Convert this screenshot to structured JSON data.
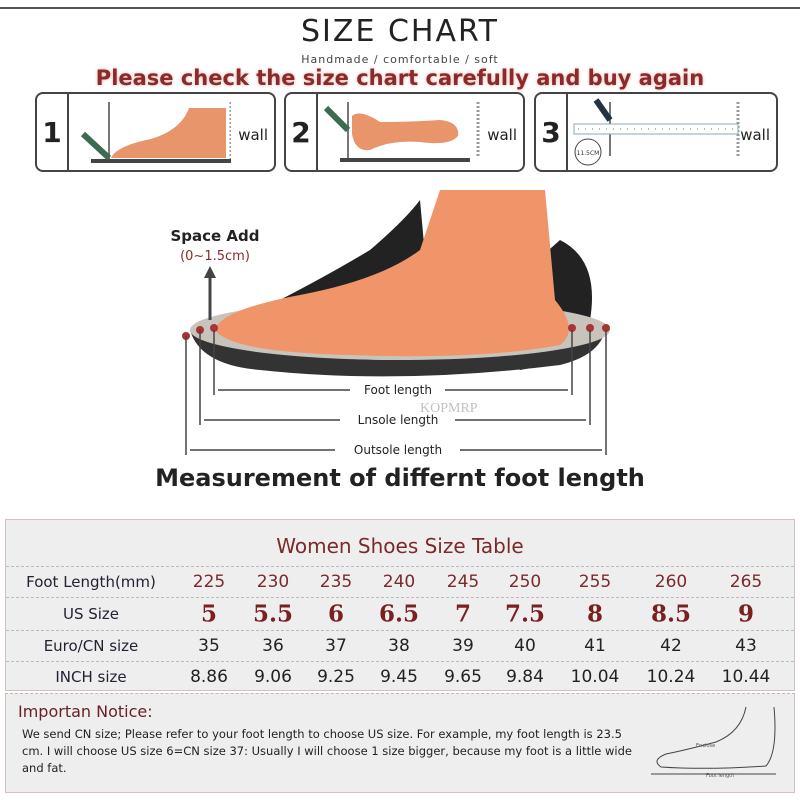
{
  "header": {
    "title": "SIZE CHART",
    "subtitle": "Handmade / comfortable / soft",
    "warning": "Please check the size chart carefully and buy again"
  },
  "steps": [
    {
      "num": "1",
      "wall": "wall"
    },
    {
      "num": "2",
      "wall": "wall"
    },
    {
      "num": "3",
      "wall": "wall",
      "ruler_label": "11.5CM"
    }
  ],
  "diagram": {
    "space_add": "Space Add",
    "space_range": "(0~1.5cm)",
    "foot_length": "Foot length",
    "insole_length": "Lnsole length",
    "outsole_length": "Outsole length",
    "watermark": "KOPMRP",
    "caption": "Measurement of differnt foot length"
  },
  "table": {
    "title": "Women Shoes Size Table",
    "rows": [
      {
        "label": "Foot Length(mm)",
        "values": [
          "225",
          "230",
          "235",
          "240",
          "245",
          "250",
          "255",
          "260",
          "265"
        ]
      },
      {
        "label": "US Size",
        "values": [
          "5",
          "5.5",
          "6",
          "6.5",
          "7",
          "7.5",
          "8",
          "8.5",
          "9"
        ]
      },
      {
        "label": "Euro/CN size",
        "values": [
          "35",
          "36",
          "37",
          "38",
          "39",
          "40",
          "41",
          "42",
          "43"
        ]
      },
      {
        "label": "INCH size",
        "values": [
          "8.86",
          "9.06",
          "9.25",
          "9.45",
          "9.65",
          "9.84",
          "10.04",
          "10.24",
          "10.44"
        ]
      }
    ]
  },
  "notice": {
    "title": "Importan Notice:",
    "text": "We send CN size; Please refer to your foot length to choose US size. For example, my foot length is 23.5 cm. I will choose US size 6=CN size 37: Usually I will choose 1 size bigger, because my foot is a little wide and fat.",
    "sketch_labels": [
      "Enclose",
      "Foot length"
    ]
  }
}
